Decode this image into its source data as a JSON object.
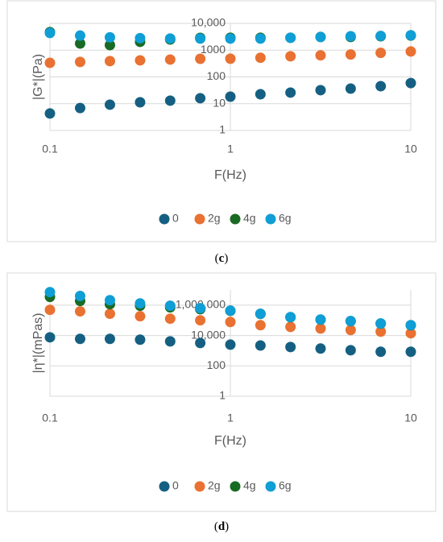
{
  "chart_data": [
    {
      "type": "scatter",
      "caption": "c",
      "x_label": "F(Hz)",
      "y_label": "|G*|(Pa)",
      "x": [
        0.1,
        0.147,
        0.215,
        0.316,
        0.464,
        0.681,
        1,
        1.468,
        2.154,
        3.162,
        4.642,
        6.813,
        10
      ],
      "xlim": [
        0.1,
        10
      ],
      "xticks": [
        0.1,
        1,
        10
      ],
      "xlog": true,
      "ylim": [
        1,
        10000
      ],
      "yticks": [
        1,
        10,
        100,
        1000,
        {
          "value": 10000,
          "label": "10,000"
        }
      ],
      "ylog": true,
      "grid": true,
      "series": [
        {
          "name": "0",
          "color": "#156082",
          "values": [
            4.3,
            6.9,
            9.2,
            11.3,
            13,
            16,
            18.3,
            22.6,
            26,
            32,
            36.6,
            45,
            59
          ]
        },
        {
          "name": "2g",
          "color": "#e97132",
          "values": [
            335,
            364,
            390,
            415,
            445,
            476,
            480,
            520,
            590,
            640,
            690,
            790,
            890
          ]
        },
        {
          "name": "4g",
          "color": "#196b24",
          "values": [
            4700,
            1770,
            1540,
            2040,
            2500,
            2880,
            2900,
            2900,
            2900,
            3100,
            3100,
            3300,
            3500
          ]
        },
        {
          "name": "6g",
          "color": "#0f9ed5",
          "values": [
            4400,
            3500,
            3000,
            2800,
            2700,
            2700,
            2700,
            2700,
            2900,
            3100,
            3300,
            3400,
            3600
          ]
        }
      ]
    },
    {
      "type": "scatter",
      "caption": "d",
      "x_label": "F(Hz)",
      "y_label": "|η*|(mPas)",
      "x": [
        0.1,
        0.147,
        0.215,
        0.316,
        0.464,
        0.681,
        1,
        1.468,
        2.154,
        3.162,
        4.642,
        6.813,
        10
      ],
      "xlim": [
        0.1,
        10
      ],
      "xticks": [
        0.1,
        1,
        10
      ],
      "xlog": true,
      "ylim": [
        1,
        10000000
      ],
      "yticks": [
        1,
        100,
        {
          "value": 10000,
          "label": "10,000"
        },
        {
          "value": 1000000,
          "label": "1,000,000"
        }
      ],
      "ylog": true,
      "grid": true,
      "series": [
        {
          "name": "0",
          "color": "#156082",
          "values": [
            7600,
            6000,
            6000,
            5300,
            4100,
            3200,
            2500,
            2200,
            1750,
            1380,
            1070,
            850,
            850
          ]
        },
        {
          "name": "2g",
          "color": "#e97132",
          "values": [
            490000,
            390000,
            270000,
            185000,
            128000,
            100000,
            78000,
            48000,
            37000,
            29000,
            23000,
            18000,
            14000
          ]
        },
        {
          "name": "4g",
          "color": "#196b24",
          "values": [
            3500000,
            1900000,
            1150000,
            910000,
            710000,
            540000,
            420000,
            265000,
            160000,
            110000,
            88000,
            61000,
            47000
          ]
        },
        {
          "name": "6g",
          "color": "#0f9ed5",
          "values": [
            7200000,
            4000000,
            2100000,
            1300000,
            910000,
            630000,
            435000,
            270000,
            163000,
            112000,
            89000,
            62000,
            48000
          ]
        }
      ]
    }
  ]
}
